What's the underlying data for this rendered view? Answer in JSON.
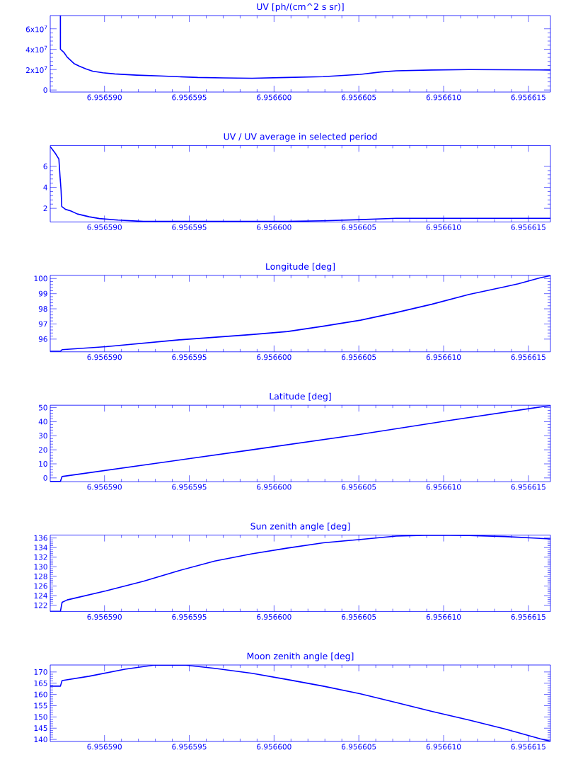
{
  "chart_data": [
    {
      "type": "line",
      "title": "UV [ph/(cm^2 s sr)]",
      "color": "#0000ff",
      "x": [
        6.9565874,
        6.9565874,
        6.9565876,
        6.9565878,
        6.956588,
        6.9565882,
        6.9565885,
        6.9565889,
        6.9565893,
        6.9565899,
        6.9565906,
        6.9565919,
        6.9565933,
        6.9565955,
        6.956597,
        6.9565987,
        6.9566008,
        6.9566029,
        6.9566051,
        6.9566063,
        6.9566072,
        6.9566093,
        6.9566115,
        6.9566163
      ],
      "values": [
        73000000,
        40000000,
        37000000,
        32300000,
        29200000,
        26000000,
        23500000,
        20800000,
        18500000,
        16900000,
        15800000,
        14600000,
        13800000,
        12300000,
        11900000,
        11500000,
        12300000,
        13100000,
        15400000,
        17700000,
        18800000,
        19600000,
        20000000,
        19600000
      ],
      "xlim": [
        6.9565868,
        6.9566163
      ],
      "ylim": [
        -2000000,
        73000000
      ],
      "xticks": [
        {
          "value": 6.95659,
          "label": "6.956590"
        },
        {
          "value": 6.956595,
          "label": "6.956595"
        },
        {
          "value": 6.9566,
          "label": "6.956600"
        },
        {
          "value": 6.956605,
          "label": "6.956605"
        },
        {
          "value": 6.95661,
          "label": "6.956610"
        },
        {
          "value": 6.956615,
          "label": "6.956615"
        }
      ],
      "yticks": [
        0,
        {
          "value": 20000000,
          "label": "2x10$^{7}$"
        },
        {
          "value": 40000000,
          "label": "4x10$^{7}$"
        },
        {
          "value": 60000000,
          "label": "6x10$^{7}$"
        }
      ]
    },
    {
      "type": "line",
      "title": "UV / UV average in selected period",
      "color": "#0000ff",
      "x": [
        6.9565868,
        6.9565871,
        6.95658731,
        6.95658738,
        6.95658744,
        6.95658748,
        6.9565877,
        6.956588,
        6.9565884,
        6.9565891,
        6.9565897,
        6.9565908,
        6.9565923,
        6.9565987,
        6.9566008,
        6.9566029,
        6.9566051,
        6.9566072,
        6.9566163
      ],
      "values": [
        7.9,
        7.25,
        6.7,
        5.0,
        3.7,
        2.17,
        1.9,
        1.76,
        1.46,
        1.19,
        1.02,
        0.88,
        0.75,
        0.75,
        0.75,
        0.81,
        0.92,
        1.05,
        1.05
      ],
      "xlim": [
        6.9565868,
        6.9566163
      ],
      "ylim": [
        0.7,
        8.0
      ],
      "xticks": [
        {
          "value": 6.95659,
          "label": "6.956590"
        },
        {
          "value": 6.956595,
          "label": "6.956595"
        },
        {
          "value": 6.9566,
          "label": "6.956600"
        },
        {
          "value": 6.956605,
          "label": "6.956605"
        },
        {
          "value": 6.95661,
          "label": "6.956610"
        },
        {
          "value": 6.956615,
          "label": "6.956615"
        }
      ],
      "yticks": [
        2,
        4,
        6
      ]
    },
    {
      "type": "line",
      "title": "Longitude [deg]",
      "color": "#0000ff",
      "x": [
        6.9565868,
        6.9565874,
        6.9565875,
        6.9565901,
        6.9565944,
        6.9565987,
        6.9566008,
        6.9566029,
        6.9566051,
        6.9566072,
        6.9566093,
        6.9566115,
        6.9566136,
        6.9566144,
        6.9566157,
        6.9566163
      ],
      "values": [
        95.19,
        95.19,
        95.3,
        95.5,
        95.95,
        96.3,
        96.5,
        96.85,
        97.25,
        97.75,
        98.3,
        98.95,
        99.45,
        99.65,
        100.05,
        100.19
      ],
      "xlim": [
        6.9565868,
        6.9566163
      ],
      "ylim": [
        95.16,
        100.21
      ],
      "xticks": [
        {
          "value": 6.95659,
          "label": "6.956590"
        },
        {
          "value": 6.956595,
          "label": "6.956595"
        },
        {
          "value": 6.9566,
          "label": "6.956600"
        },
        {
          "value": 6.956605,
          "label": "6.956605"
        },
        {
          "value": 6.95661,
          "label": "6.956610"
        },
        {
          "value": 6.956615,
          "label": "6.956615"
        }
      ],
      "yticks": [
        96,
        97,
        98,
        99,
        100
      ]
    },
    {
      "type": "line",
      "title": "Latitude [deg]",
      "color": "#0000ff",
      "x": [
        6.9565868,
        6.9565874,
        6.9565875,
        6.9565987,
        6.9566051,
        6.9566104,
        6.9566163
      ],
      "values": [
        -2.5,
        -2.5,
        1,
        20,
        31,
        41,
        51.5
      ],
      "xlim": [
        6.9565868,
        6.9566163
      ],
      "ylim": [
        -2.7,
        51.7
      ],
      "xticks": [
        {
          "value": 6.95659,
          "label": "6.956590"
        },
        {
          "value": 6.956595,
          "label": "6.956595"
        },
        {
          "value": 6.9566,
          "label": "6.956600"
        },
        {
          "value": 6.956605,
          "label": "6.956605"
        },
        {
          "value": 6.95661,
          "label": "6.956610"
        },
        {
          "value": 6.956615,
          "label": "6.956615"
        }
      ],
      "yticks": [
        0,
        10,
        20,
        30,
        40,
        50
      ]
    },
    {
      "type": "line",
      "title": "Sun zenith angle [deg]",
      "color": "#0000ff",
      "x": [
        6.9565868,
        6.9565874,
        6.9565875,
        6.9565878,
        6.9565901,
        6.9565923,
        6.9565944,
        6.9565965,
        6.9565987,
        6.9566008,
        6.9566029,
        6.9566051,
        6.9566072,
        6.9566093,
        6.9566115,
        6.9566136,
        6.9566163
      ],
      "values": [
        120.7,
        120.7,
        122.6,
        123.1,
        125.0,
        127.0,
        129.2,
        131.2,
        132.7,
        133.9,
        135.0,
        135.7,
        136.4,
        136.6,
        136.5,
        136.3,
        135.8
      ],
      "xlim": [
        6.9565868,
        6.9566163
      ],
      "ylim": [
        120.67,
        136.6
      ],
      "xticks": [
        {
          "value": 6.95659,
          "label": "6.956590"
        },
        {
          "value": 6.956595,
          "label": "6.956595"
        },
        {
          "value": 6.9566,
          "label": "6.956600"
        },
        {
          "value": 6.956605,
          "label": "6.956605"
        },
        {
          "value": 6.95661,
          "label": "6.956610"
        },
        {
          "value": 6.956615,
          "label": "6.956615"
        }
      ],
      "yticks": [
        122,
        124,
        126,
        128,
        130,
        132,
        134,
        136
      ]
    },
    {
      "type": "line",
      "title": "Moon zenith angle [deg]",
      "color": "#0000ff",
      "x": [
        6.9565868,
        6.9565874,
        6.9565875,
        6.9565891,
        6.9565912,
        6.9565929,
        6.9565948,
        6.9565965,
        6.9565987,
        6.9566008,
        6.9566029,
        6.9566051,
        6.9566072,
        6.9566093,
        6.9566115,
        6.9566136,
        6.9566157,
        6.9566163
      ],
      "values": [
        163.7,
        163.7,
        166.2,
        168.1,
        171.2,
        173.0,
        173.0,
        171.6,
        169.4,
        166.6,
        163.7,
        160.3,
        156.4,
        152.5,
        148.6,
        144.7,
        140.3,
        139.2
      ],
      "xlim": [
        6.9565868,
        6.9566163
      ],
      "ylim": [
        139.1,
        173.1
      ],
      "xticks": [
        {
          "value": 6.95659,
          "label": "6.956590"
        },
        {
          "value": 6.956595,
          "label": "6.956595"
        },
        {
          "value": 6.9566,
          "label": "6.956600"
        },
        {
          "value": 6.956605,
          "label": "6.956605"
        },
        {
          "value": 6.95661,
          "label": "6.956610"
        },
        {
          "value": 6.956615,
          "label": "6.956615"
        }
      ],
      "yticks": [
        140,
        145,
        150,
        155,
        160,
        165,
        170
      ]
    }
  ]
}
